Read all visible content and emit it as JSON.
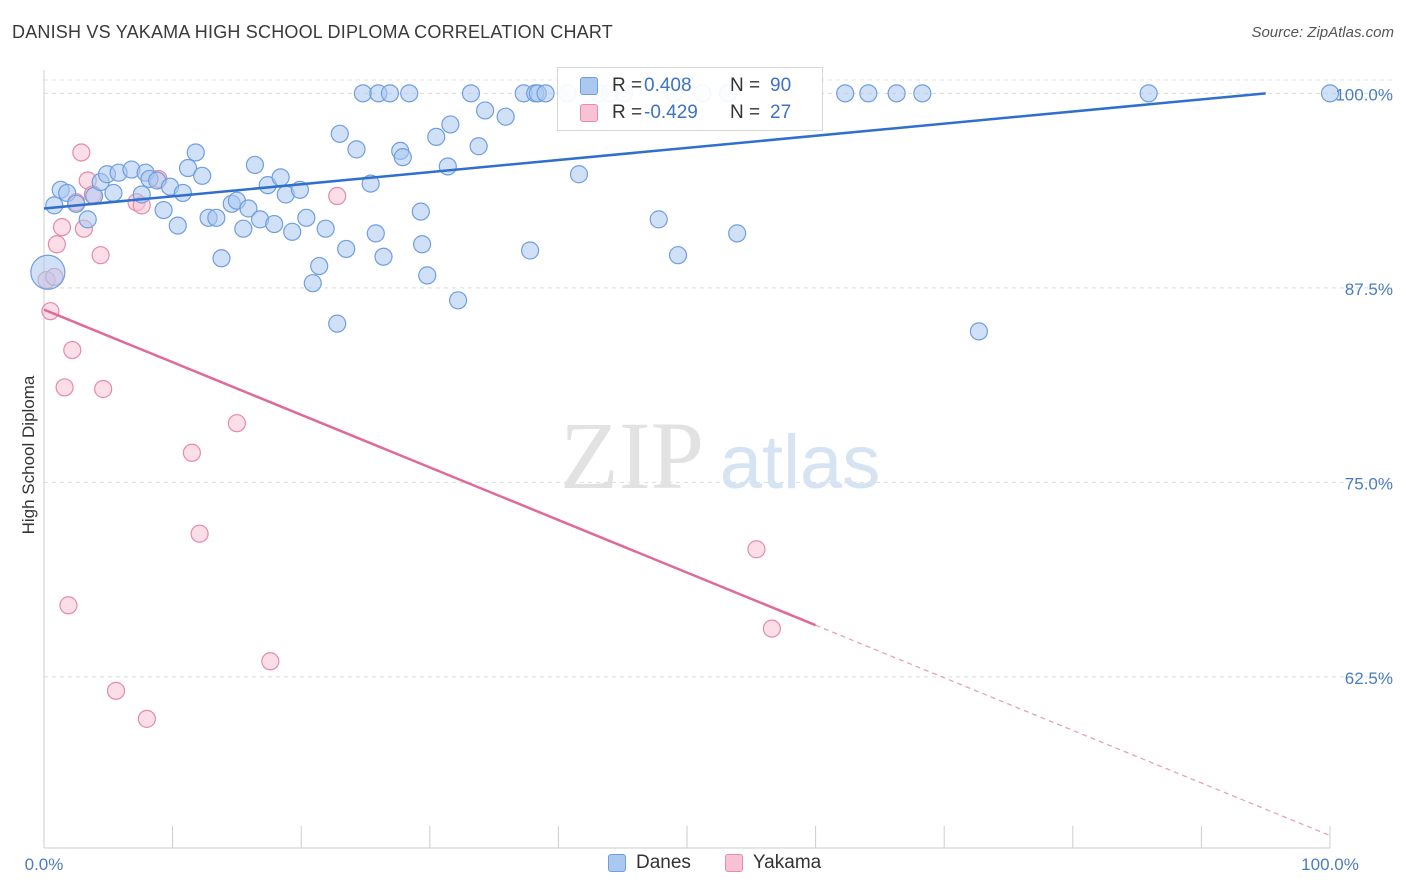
{
  "header": {
    "title": "DANISH VS YAKAMA HIGH SCHOOL DIPLOMA CORRELATION CHART",
    "source": "Source: ZipAtlas.com"
  },
  "watermark": {
    "zip": "ZIP",
    "atlas": "atlas"
  },
  "legend": {
    "rows": [
      {
        "r_label": "R =",
        "r_value": "0.408",
        "n_label": "N =",
        "n_value": "90",
        "color": "#aac8f0",
        "border": "#6f9ee0"
      },
      {
        "r_label": "R =",
        "r_value": "-0.429",
        "n_label": "N =",
        "n_value": "27",
        "color": "#f7c3d4",
        "border": "#e68aa9"
      }
    ]
  },
  "bottom_legend": [
    {
      "label": "Danes",
      "color": "#aac8f0",
      "border": "#6f9ee0"
    },
    {
      "label": "Yakama",
      "color": "#f7c3d4",
      "border": "#e68aa9"
    }
  ],
  "chart_data": {
    "type": "scatter",
    "title": "DANISH VS YAKAMA HIGH SCHOOL DIPLOMA CORRELATION CHART",
    "xlabel": "",
    "ylabel": "High School Diploma",
    "xlim": [
      0,
      100
    ],
    "ylim": [
      51.5,
      101.5
    ],
    "x_tick_labels": [
      "0.0%",
      "100.0%"
    ],
    "y_ticks": [
      100.0,
      87.5,
      75.0,
      62.5
    ],
    "y_tick_labels": [
      "100.0%",
      "87.5%",
      "75.0%",
      "62.5%"
    ],
    "grid": true,
    "legend_position": "top-center",
    "series": [
      {
        "name": "Danes",
        "color": "#6f9ee0",
        "fill": "#aac8f0",
        "r": 0.408,
        "n": 90,
        "trend": {
          "x": [
            0,
            95
          ],
          "y": [
            92.6,
            100.0
          ],
          "dashed_from": null
        },
        "points": [
          [
            0.3,
            88.5
          ],
          [
            0.8,
            92.8
          ],
          [
            1.3,
            93.8
          ],
          [
            1.8,
            93.6
          ],
          [
            2.5,
            92.9
          ],
          [
            3.4,
            91.9
          ],
          [
            3.9,
            93.4
          ],
          [
            4.4,
            94.3
          ],
          [
            4.9,
            94.8
          ],
          [
            5.8,
            94.9
          ],
          [
            5.4,
            93.6
          ],
          [
            6.8,
            95.1
          ],
          [
            7.6,
            93.5
          ],
          [
            7.9,
            94.9
          ],
          [
            8.2,
            94.5
          ],
          [
            8.8,
            94.4
          ],
          [
            9.3,
            92.5
          ],
          [
            9.8,
            94.0
          ],
          [
            10.4,
            91.5
          ],
          [
            10.8,
            93.6
          ],
          [
            11.2,
            95.2
          ],
          [
            11.8,
            96.2
          ],
          [
            12.3,
            94.7
          ],
          [
            12.8,
            92.0
          ],
          [
            13.4,
            92.0
          ],
          [
            13.8,
            89.4
          ],
          [
            14.6,
            92.9
          ],
          [
            15.0,
            93.1
          ],
          [
            15.5,
            91.3
          ],
          [
            15.9,
            92.6
          ],
          [
            16.4,
            95.4
          ],
          [
            16.8,
            91.9
          ],
          [
            17.4,
            94.1
          ],
          [
            17.9,
            91.6
          ],
          [
            18.4,
            94.6
          ],
          [
            18.8,
            93.5
          ],
          [
            19.3,
            91.1
          ],
          [
            19.9,
            93.8
          ],
          [
            20.4,
            92.0
          ],
          [
            20.9,
            87.8
          ],
          [
            21.4,
            88.9
          ],
          [
            21.9,
            91.3
          ],
          [
            22.8,
            85.2
          ],
          [
            23.0,
            97.4
          ],
          [
            23.5,
            90.0
          ],
          [
            24.3,
            96.4
          ],
          [
            24.8,
            100.0
          ],
          [
            25.4,
            94.2
          ],
          [
            25.8,
            91.0
          ],
          [
            26.0,
            100.0
          ],
          [
            26.4,
            89.5
          ],
          [
            26.9,
            100.0
          ],
          [
            27.7,
            96.3
          ],
          [
            27.9,
            95.9
          ],
          [
            28.4,
            100.0
          ],
          [
            29.3,
            92.4
          ],
          [
            29.4,
            90.3
          ],
          [
            29.8,
            88.3
          ],
          [
            30.5,
            97.2
          ],
          [
            31.4,
            95.3
          ],
          [
            31.6,
            98.0
          ],
          [
            32.2,
            86.7
          ],
          [
            33.2,
            100.0
          ],
          [
            33.8,
            96.6
          ],
          [
            34.3,
            98.9
          ],
          [
            35.9,
            98.5
          ],
          [
            37.3,
            100.0
          ],
          [
            37.8,
            89.9
          ],
          [
            38.2,
            100.0
          ],
          [
            38.4,
            100.0
          ],
          [
            39.0,
            100.0
          ],
          [
            40.7,
            100.0
          ],
          [
            41.6,
            94.8
          ],
          [
            42.3,
            100.0
          ],
          [
            43.2,
            100.0
          ],
          [
            44.0,
            100.0
          ],
          [
            45.1,
            100.0
          ],
          [
            47.8,
            91.9
          ],
          [
            49.0,
            100.0
          ],
          [
            49.3,
            89.6
          ],
          [
            51.2,
            100.0
          ],
          [
            53.2,
            100.0
          ],
          [
            53.9,
            91.0
          ],
          [
            62.3,
            100.0
          ],
          [
            64.1,
            100.0
          ],
          [
            66.3,
            100.0
          ],
          [
            68.3,
            100.0
          ],
          [
            72.7,
            84.7
          ],
          [
            85.9,
            100.0
          ],
          [
            100.0,
            100.0
          ]
        ]
      },
      {
        "name": "Yakama",
        "color": "#e68aa9",
        "fill": "#f7c3d4",
        "r": -0.429,
        "n": 27,
        "trend": {
          "x": [
            0,
            100
          ],
          "y": [
            86.1,
            52.3
          ],
          "solid_to": 60
        },
        "points": [
          [
            0.2,
            88.0
          ],
          [
            0.5,
            86.0
          ],
          [
            0.8,
            88.2
          ],
          [
            1.0,
            90.3
          ],
          [
            1.4,
            91.4
          ],
          [
            1.6,
            81.1
          ],
          [
            1.9,
            67.1
          ],
          [
            2.2,
            83.5
          ],
          [
            2.5,
            93.0
          ],
          [
            2.9,
            96.2
          ],
          [
            3.1,
            91.3
          ],
          [
            3.4,
            94.4
          ],
          [
            3.8,
            93.5
          ],
          [
            4.4,
            89.6
          ],
          [
            4.6,
            81.0
          ],
          [
            5.6,
            61.6
          ],
          [
            7.2,
            93.0
          ],
          [
            7.6,
            92.8
          ],
          [
            8.0,
            59.8
          ],
          [
            8.9,
            94.5
          ],
          [
            11.5,
            76.9
          ],
          [
            12.1,
            71.7
          ],
          [
            15.0,
            78.8
          ],
          [
            17.6,
            63.5
          ],
          [
            22.8,
            93.4
          ],
          [
            55.4,
            70.7
          ],
          [
            56.6,
            65.6
          ]
        ]
      }
    ]
  }
}
